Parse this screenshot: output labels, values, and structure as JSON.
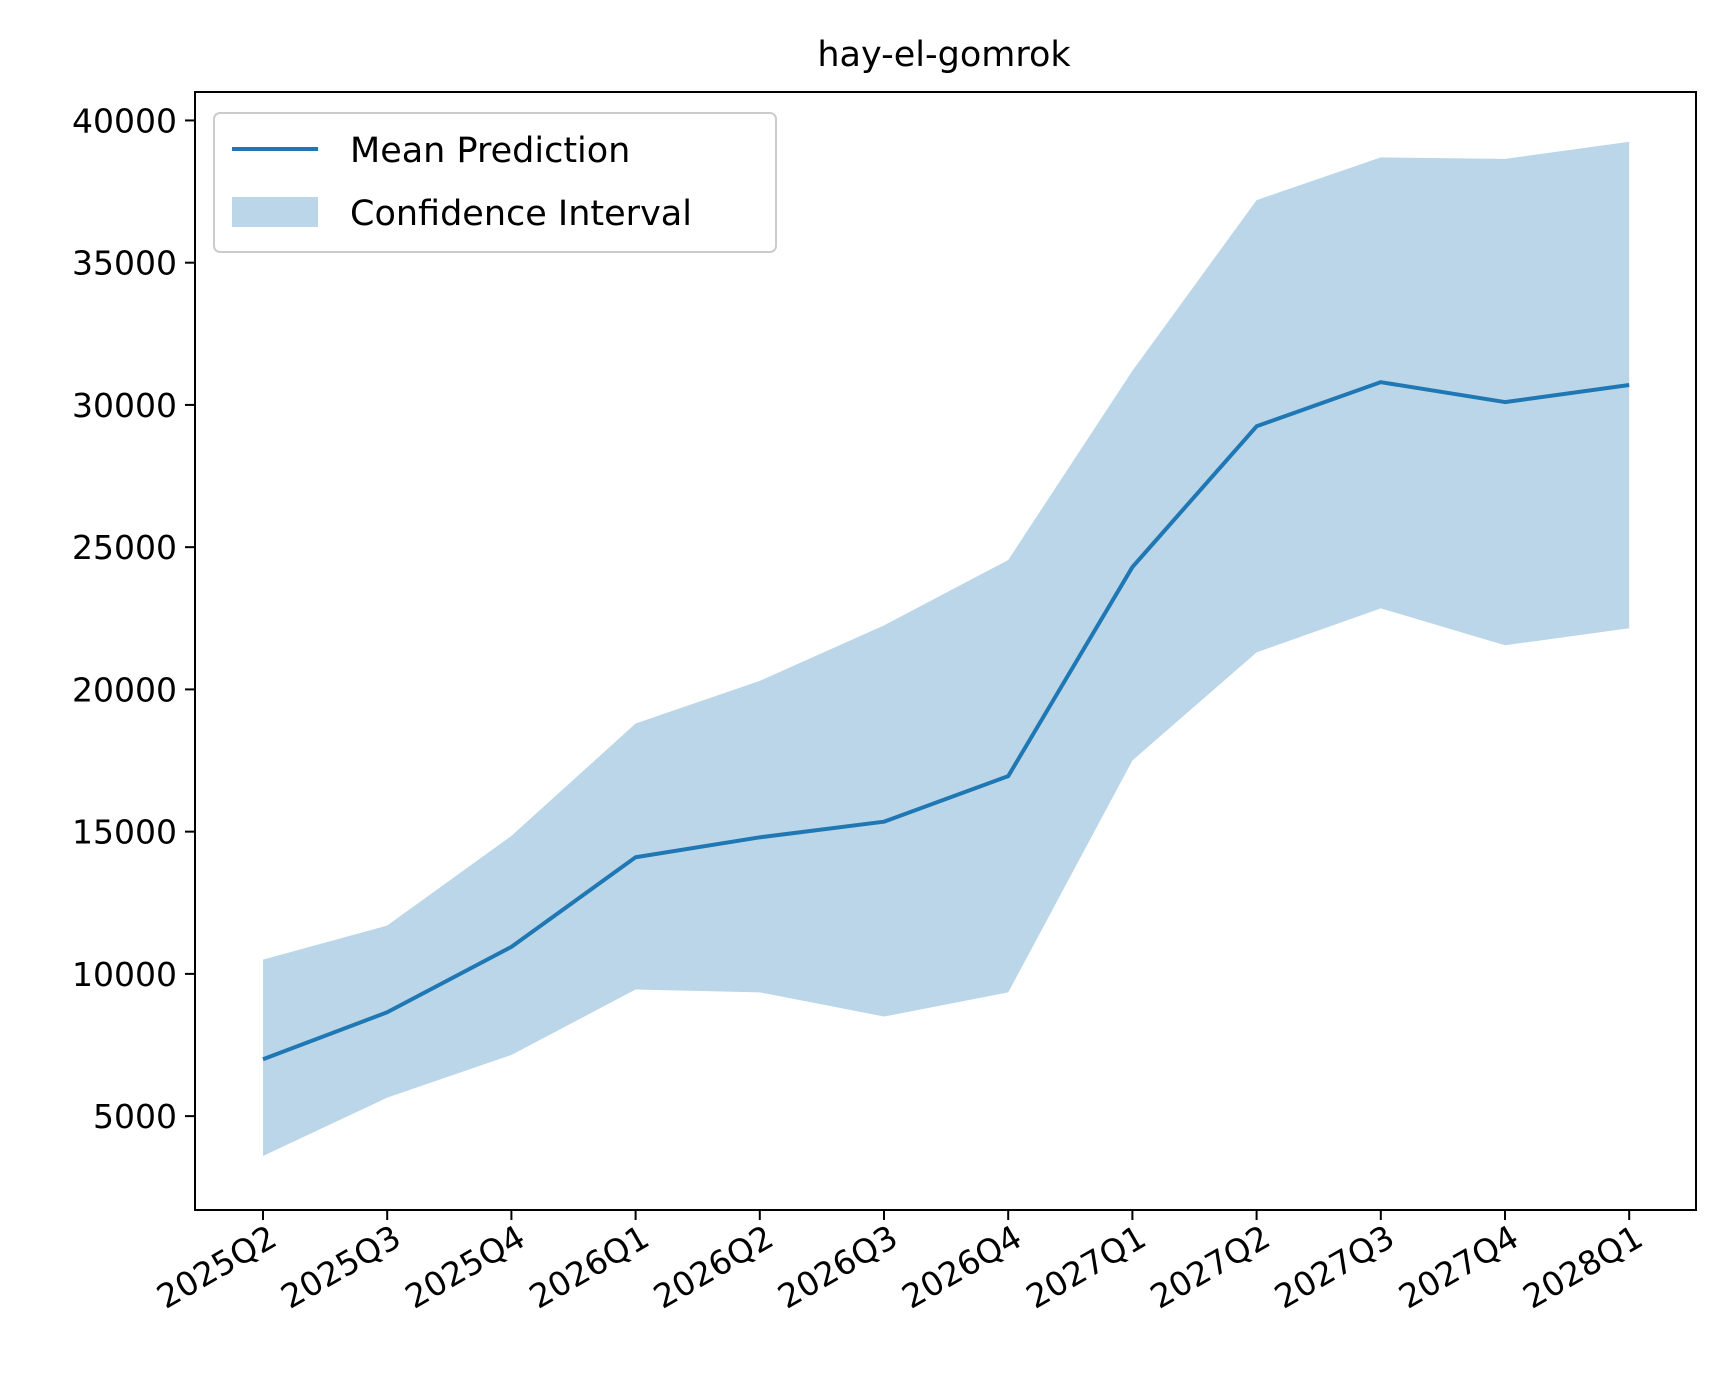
{
  "chart_data": {
    "type": "line",
    "title": "hay-el-gomrok",
    "xlabel": "",
    "ylabel": "",
    "categories": [
      "2025Q2",
      "2025Q3",
      "2025Q4",
      "2026Q1",
      "2026Q2",
      "2026Q3",
      "2026Q4",
      "2027Q1",
      "2027Q2",
      "2027Q3",
      "2027Q4",
      "2028Q1"
    ],
    "series": [
      {
        "name": "Mean Prediction",
        "type": "line",
        "color": "#1f77b4",
        "values": [
          7000,
          8650,
          10950,
          14100,
          14800,
          15350,
          16950,
          24300,
          29250,
          30800,
          30100,
          30700
        ]
      },
      {
        "name": "Confidence Interval",
        "type": "band",
        "color": "#1f77b4",
        "opacity": 0.3,
        "lower": [
          3600,
          5650,
          7150,
          9450,
          9350,
          8500,
          9350,
          17500,
          21300,
          22850,
          21550,
          22150
        ],
        "upper": [
          10500,
          11700,
          14850,
          18800,
          20300,
          22250,
          24550,
          31200,
          37200,
          38700,
          38650,
          39250
        ]
      }
    ],
    "y_ticks": [
      5000,
      10000,
      15000,
      20000,
      25000,
      30000,
      35000,
      40000
    ],
    "y_tick_labels": [
      "5000",
      "10000",
      "15000",
      "20000",
      "25000",
      "30000",
      "35000",
      "40000"
    ],
    "ylim": [
      1700,
      41000
    ],
    "grid": false,
    "legend_position": "upper-left",
    "x_tick_rotation_deg": 30
  }
}
